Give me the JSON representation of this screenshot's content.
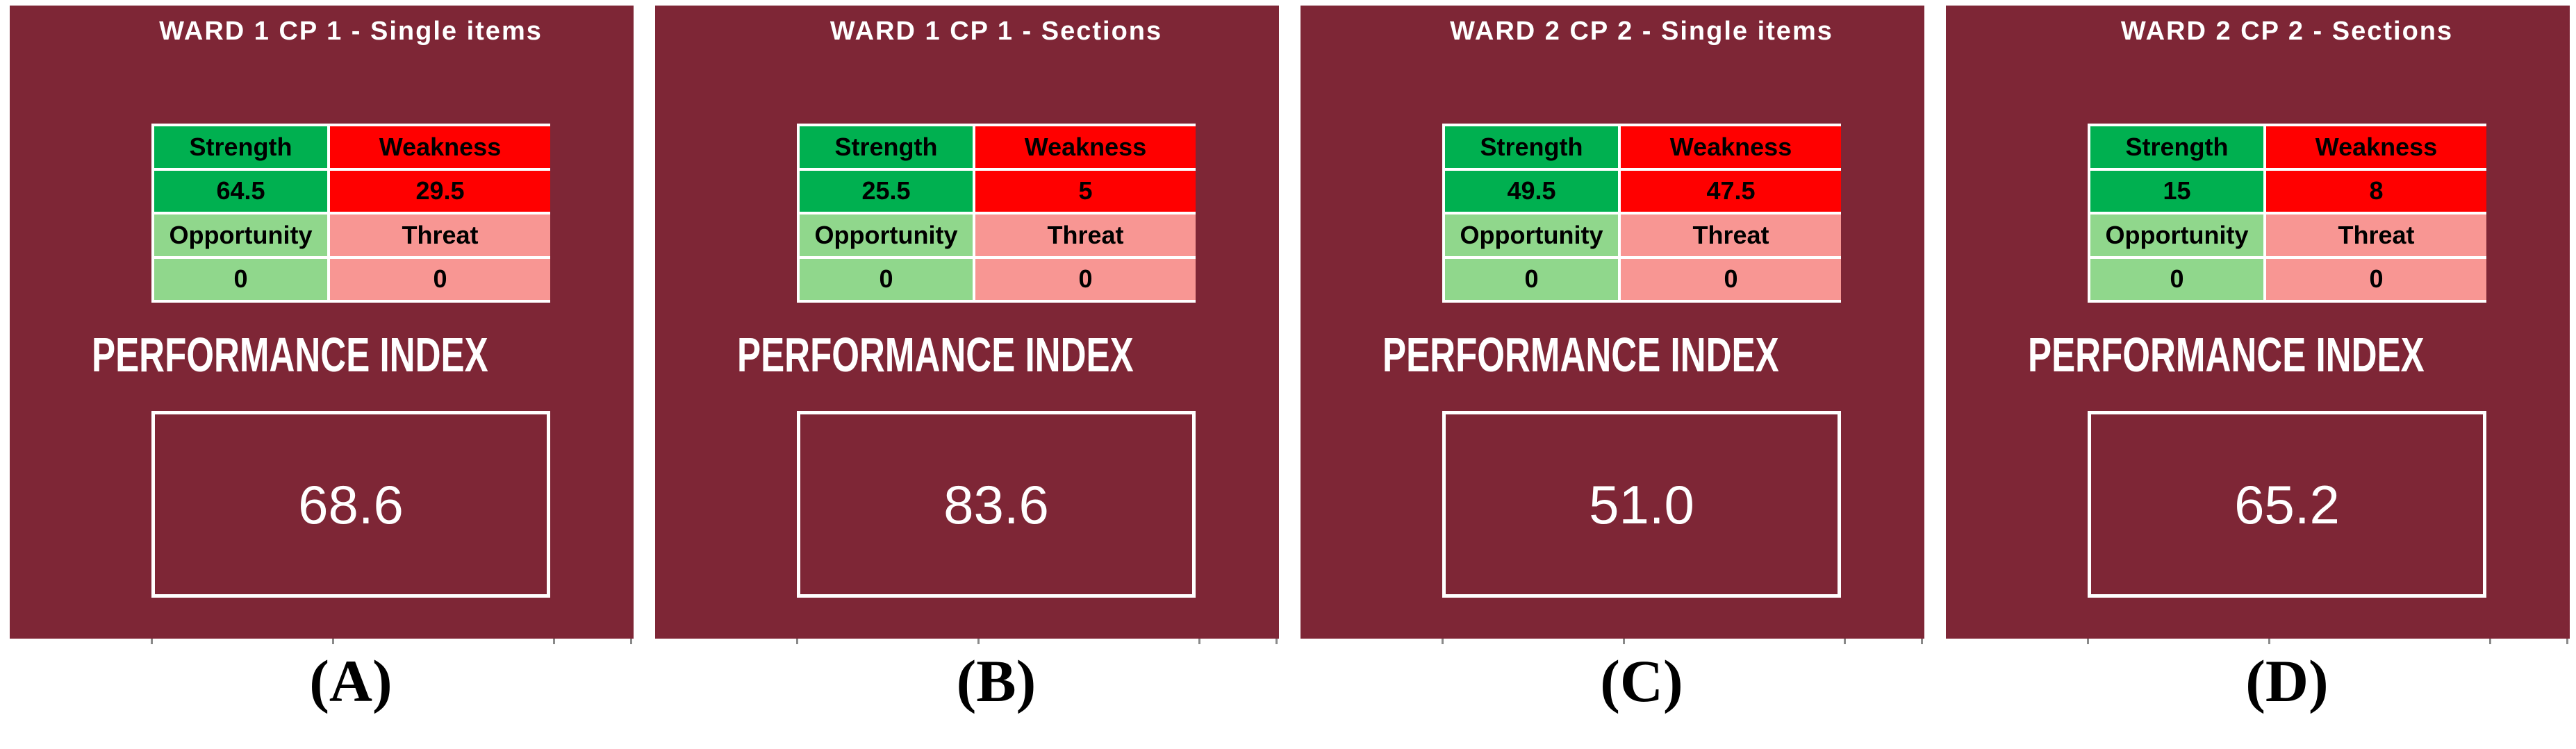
{
  "figure": {
    "performance_index_label": "PERFORMANCE INDEX",
    "swot_labels": {
      "strength": "Strength",
      "weakness": "Weakness",
      "opportunity": "Opportunity",
      "threat": "Threat"
    },
    "panels": [
      {
        "title": "WARD 1 CP 1 - Single items",
        "strength": "64.5",
        "weakness": "29.5",
        "opportunity": "0",
        "threat": "0",
        "performance_index": "68.6",
        "caption": "(A)"
      },
      {
        "title": "WARD 1 CP 1 - Sections",
        "strength": "25.5",
        "weakness": "5",
        "opportunity": "0",
        "threat": "0",
        "performance_index": "83.6",
        "caption": "(B)"
      },
      {
        "title": "WARD 2 CP 2 - Single items",
        "strength": "49.5",
        "weakness": "47.5",
        "opportunity": "0",
        "threat": "0",
        "performance_index": "51.0",
        "caption": "(C)"
      },
      {
        "title": "WARD 2 CP 2 - Sections",
        "strength": "15",
        "weakness": "8",
        "opportunity": "0",
        "threat": "0",
        "performance_index": "65.2",
        "caption": "(D)"
      }
    ]
  },
  "colors": {
    "panel_background": "#7E2636",
    "strength_cell": "#00B050",
    "weakness_cell": "#FF0000",
    "opportunity_cell": "#90D78C",
    "threat_cell": "#F89693",
    "grid_lines": "#FFFFFF",
    "table_text": "#000000",
    "panel_text": "#FFFFFF"
  },
  "chart_data": [
    {
      "type": "table",
      "title": "WARD 1 CP 1 - Single items",
      "swot": {
        "strength": 64.5,
        "weakness": 29.5,
        "opportunity": 0,
        "threat": 0
      },
      "performance_index": 68.6,
      "caption": "(A)"
    },
    {
      "type": "table",
      "title": "WARD 1 CP 1 - Sections",
      "swot": {
        "strength": 25.5,
        "weakness": 5,
        "opportunity": 0,
        "threat": 0
      },
      "performance_index": 83.6,
      "caption": "(B)"
    },
    {
      "type": "table",
      "title": "WARD 2 CP 2 - Single items",
      "swot": {
        "strength": 49.5,
        "weakness": 47.5,
        "opportunity": 0,
        "threat": 0
      },
      "performance_index": 51.0,
      "caption": "(C)"
    },
    {
      "type": "table",
      "title": "WARD 2 CP 2 - Sections",
      "swot": {
        "strength": 15,
        "weakness": 8,
        "opportunity": 0,
        "threat": 0
      },
      "performance_index": 65.2,
      "caption": "(D)"
    }
  ]
}
